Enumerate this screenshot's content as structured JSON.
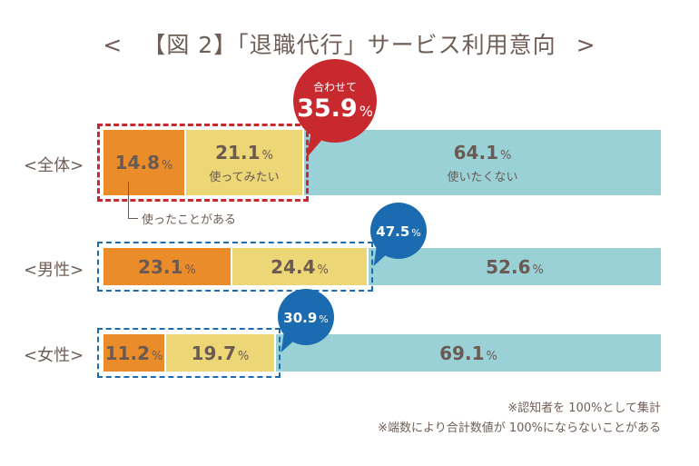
{
  "title": {
    "left_bracket": "<",
    "text": "【図 2】「退職代行」サービス利用意向",
    "right_bracket": ">"
  },
  "colors": {
    "used": "#ea8c2a",
    "want_to_use": "#ecd676",
    "dont_want": "#9ad1d6",
    "total_highlight": "#c8292e",
    "gender_highlight": "#1a6bb0",
    "text": "#6b5a52"
  },
  "legend": {
    "used": "使ったことがある",
    "want_to_use": "使ってみたい",
    "dont_want": "使いたくない"
  },
  "chart_data": {
    "type": "bar",
    "stacked": true,
    "orientation": "horizontal",
    "title": "【図 2】「退職代行」サービス利用意向",
    "categories": [
      "<全体>",
      "<男性>",
      "<女性>"
    ],
    "unit": "%",
    "xlim": [
      0,
      100
    ],
    "series": [
      {
        "name": "使ったことがある",
        "values": [
          14.8,
          23.1,
          11.2
        ]
      },
      {
        "name": "使ってみたい",
        "values": [
          21.1,
          24.4,
          19.7
        ]
      },
      {
        "name": "使いたくない",
        "values": [
          64.1,
          52.6,
          69.1
        ]
      }
    ],
    "combined_labels": [
      {
        "category": "<全体>",
        "prefix": "合わせて",
        "value": "35.9"
      },
      {
        "category": "<男性>",
        "prefix": "",
        "value": "47.5"
      },
      {
        "category": "<女性>",
        "prefix": "",
        "value": "30.9"
      }
    ],
    "percent_sign": "%",
    "notes": [
      "※認知者を 100%として集計",
      "※端数により合計数値が 100%にならないことがある"
    ]
  }
}
